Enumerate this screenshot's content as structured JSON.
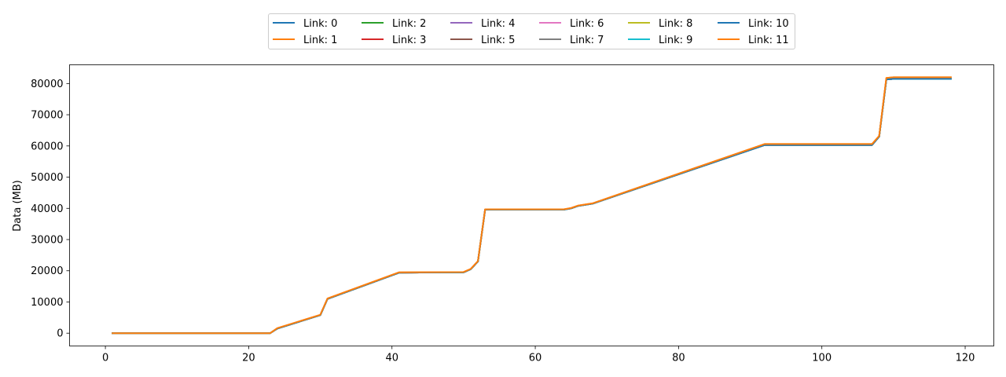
{
  "chart_data": {
    "type": "line",
    "title": "",
    "xlabel": "",
    "ylabel": "Data (MB)",
    "xlim": [
      -5,
      124
    ],
    "ylim": [
      -4100,
      86000
    ],
    "x_ticks": [
      0,
      20,
      40,
      60,
      80,
      100,
      120
    ],
    "y_ticks": [
      0,
      10000,
      20000,
      30000,
      40000,
      50000,
      60000,
      70000,
      80000
    ],
    "x_tick_labels": [
      "0",
      "20",
      "40",
      "60",
      "80",
      "100",
      "120"
    ],
    "y_tick_labels": [
      "0",
      "10000",
      "20000",
      "30000",
      "40000",
      "50000",
      "60000",
      "70000",
      "80000"
    ],
    "grid": false,
    "legend_position": "top-center",
    "legend_columns": 6,
    "x": [
      1,
      23,
      24,
      30,
      31,
      41,
      50,
      51,
      52,
      53,
      64,
      65,
      66,
      68,
      92,
      107,
      108,
      109,
      110,
      118
    ],
    "series": [
      {
        "name": "Link: 0",
        "color": "#1f77b4",
        "values": [
          0,
          0,
          1500,
          5800,
          11000,
          19400,
          19500,
          20500,
          23000,
          39600,
          39600,
          40000,
          40800,
          41500,
          60300,
          60300,
          63000,
          81300,
          81500,
          81500
        ]
      },
      {
        "name": "Link: 1",
        "color": "#ff7f0e",
        "values": [
          0,
          0,
          1600,
          5900,
          11100,
          19500,
          19600,
          20600,
          23100,
          39700,
          39700,
          40100,
          40900,
          41600,
          60600,
          60600,
          63200,
          81800,
          82000,
          82000
        ]
      },
      {
        "name": "Link: 2",
        "color": "#2ca02c",
        "values": [
          0,
          0,
          1500,
          5800,
          11000,
          19400,
          19500,
          20500,
          23000,
          39600,
          39600,
          40000,
          40800,
          41500,
          60300,
          60300,
          63000,
          81300,
          81500,
          81500
        ]
      },
      {
        "name": "Link: 3",
        "color": "#d62728",
        "values": [
          0,
          0,
          1500,
          5800,
          11000,
          19400,
          19500,
          20500,
          23000,
          39600,
          39600,
          40000,
          40800,
          41500,
          60300,
          60300,
          63000,
          81300,
          81500,
          81500
        ]
      },
      {
        "name": "Link: 4",
        "color": "#9467bd",
        "values": [
          0,
          0,
          1500,
          5800,
          11000,
          19400,
          19500,
          20500,
          23000,
          39600,
          39600,
          40000,
          40800,
          41500,
          60300,
          60300,
          63000,
          81300,
          81500,
          81500
        ]
      },
      {
        "name": "Link: 5",
        "color": "#8c564b",
        "values": [
          0,
          0,
          1500,
          5800,
          11000,
          19400,
          19500,
          20500,
          23000,
          39600,
          39600,
          40000,
          40800,
          41500,
          60300,
          60300,
          63000,
          81300,
          81500,
          81500
        ]
      },
      {
        "name": "Link: 6",
        "color": "#e377c2",
        "values": [
          0,
          0,
          1500,
          5800,
          11000,
          19400,
          19500,
          20500,
          23000,
          39600,
          39600,
          40000,
          40800,
          41500,
          60300,
          60300,
          63000,
          81300,
          81500,
          81500
        ]
      },
      {
        "name": "Link: 7",
        "color": "#7f7f7f",
        "values": [
          0,
          0,
          1500,
          5800,
          11000,
          19400,
          19500,
          20500,
          23000,
          39600,
          39600,
          40000,
          40800,
          41500,
          60300,
          60300,
          63000,
          81300,
          81500,
          81500
        ]
      },
      {
        "name": "Link: 8",
        "color": "#bcbd22",
        "values": [
          0,
          0,
          1500,
          5800,
          11000,
          19400,
          19500,
          20500,
          23000,
          39600,
          39600,
          40000,
          40800,
          41500,
          60300,
          60300,
          63000,
          81300,
          81500,
          81500
        ]
      },
      {
        "name": "Link: 9",
        "color": "#17becf",
        "values": [
          0,
          0,
          1500,
          5800,
          11000,
          19400,
          19500,
          20500,
          23000,
          39600,
          39600,
          40000,
          40800,
          41500,
          60300,
          60300,
          63000,
          81300,
          81500,
          81500
        ]
      },
      {
        "name": "Link: 10",
        "color": "#1f77b4",
        "values": [
          0,
          0,
          1500,
          5800,
          11000,
          19400,
          19500,
          20500,
          23000,
          39600,
          39600,
          40000,
          40800,
          41500,
          60300,
          60300,
          63000,
          81300,
          81500,
          81500
        ]
      },
      {
        "name": "Link: 11",
        "color": "#ff7f0e",
        "values": [
          0,
          0,
          1600,
          5900,
          11100,
          19500,
          19600,
          20600,
          23100,
          39700,
          39700,
          40100,
          40900,
          41600,
          60600,
          60600,
          63200,
          81800,
          82000,
          82000
        ]
      }
    ]
  }
}
